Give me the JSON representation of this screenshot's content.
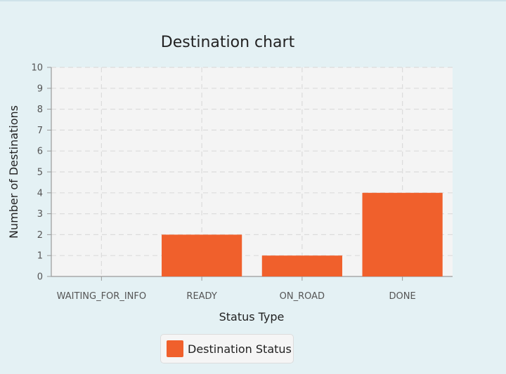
{
  "chart_data": {
    "type": "bar",
    "title": "Destination chart",
    "xlabel": "Status Type",
    "ylabel": "Number of Destinations",
    "categories": [
      "WAITING_FOR_INFO",
      "READY",
      "ON_ROAD",
      "DONE"
    ],
    "series": [
      {
        "name": "Destination Status",
        "values": [
          0,
          2,
          1,
          4
        ]
      }
    ],
    "ylim": [
      0,
      10
    ],
    "yticks": [
      "0",
      "1",
      "2",
      "3",
      "4",
      "5",
      "6",
      "7",
      "8",
      "9",
      "10"
    ],
    "grid": true,
    "legend_position": "bottom",
    "bar_color": "#f0602c",
    "plot_background": "#f4f4f4"
  }
}
